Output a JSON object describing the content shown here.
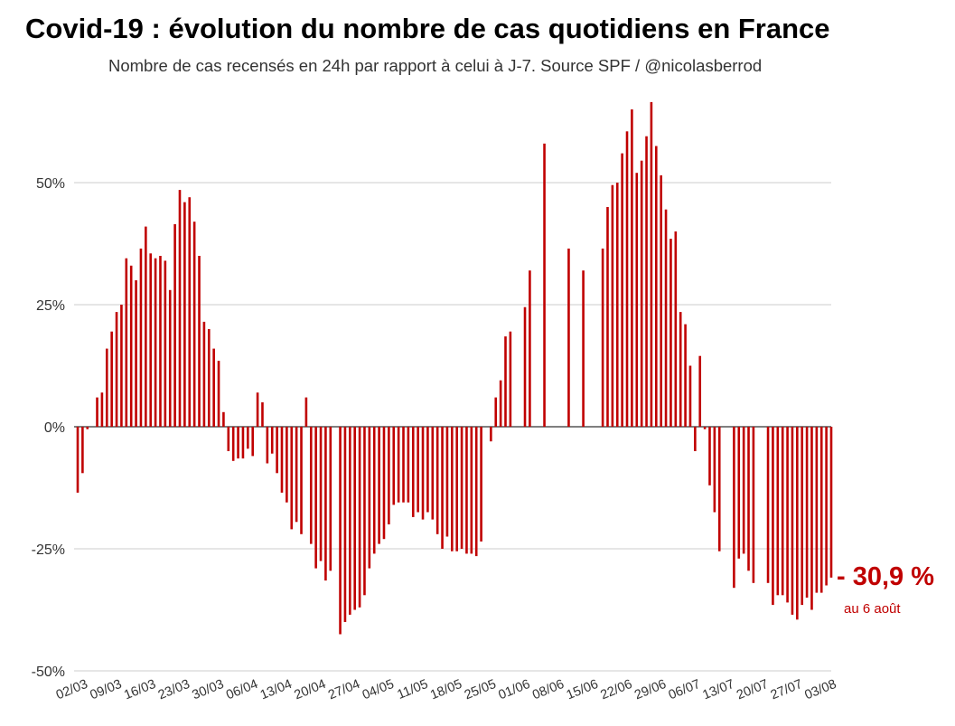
{
  "colors": {
    "bar": "#c00000",
    "annotation": "#c00000"
  },
  "chart_data": {
    "type": "bar",
    "title": "Covid-19 : évolution du nombre de cas quotidiens en France",
    "subtitle": "Nombre de cas recensés en 24h par rapport à celui à J-7. Source SPF / @nicolasberrod",
    "ylabel": "",
    "xlabel": "",
    "ylim": [
      -50,
      67
    ],
    "yticks": [
      50,
      25,
      0,
      -25,
      -50
    ],
    "ytick_labels": [
      "50%",
      "25%",
      "0%",
      "-25%",
      "-50%"
    ],
    "xtick_labels": [
      "02/03",
      "09/03",
      "16/03",
      "23/03",
      "30/03",
      "06/04",
      "13/04",
      "20/04",
      "27/04",
      "04/05",
      "11/05",
      "18/05",
      "25/05",
      "01/06",
      "08/06",
      "15/06",
      "22/06",
      "29/06",
      "06/07",
      "13/07",
      "20/07",
      "27/07",
      "03/08"
    ],
    "start_date": "02/03",
    "end_date": "06/08",
    "values": [
      -13.5,
      -9.5,
      -0.5,
      null,
      6,
      7,
      16,
      19.5,
      23.5,
      25,
      34.5,
      33,
      30,
      36.5,
      41,
      35.5,
      34.5,
      35,
      34,
      28,
      41.5,
      48.5,
      46,
      47,
      42,
      35,
      21.5,
      20,
      16,
      13.5,
      3,
      -5,
      -7,
      -6.5,
      -6.5,
      -4.5,
      -6,
      7,
      5,
      -7.5,
      -5.5,
      -9.5,
      -13.5,
      -15.5,
      -21,
      -19.5,
      -22,
      6,
      -24,
      -29,
      -27.5,
      -31.5,
      -29.5,
      null,
      -42.5,
      -40,
      -38.5,
      -37.5,
      -37,
      -34.5,
      -29,
      -26,
      -24,
      -23,
      -20,
      -16,
      -15.5,
      -15.5,
      -15.5,
      -18.5,
      -17.5,
      -19,
      -17.5,
      -19,
      -22,
      -25,
      -22.5,
      -25.5,
      -25.5,
      -25,
      -26,
      -26,
      -26.5,
      -23.5,
      null,
      -3,
      6,
      9.5,
      18.5,
      19.5,
      null,
      null,
      24.5,
      32,
      null,
      null,
      58,
      null,
      null,
      null,
      null,
      36.5,
      null,
      null,
      32,
      null,
      null,
      null,
      36.5,
      45,
      49.5,
      50,
      56,
      60.5,
      65,
      52,
      54.5,
      59.5,
      66.5,
      57.5,
      51.5,
      44.5,
      38.5,
      40,
      23.5,
      21,
      12.5,
      -5,
      14.5,
      -0.5,
      -12,
      -17.5,
      -25.5,
      null,
      null,
      -33,
      -27,
      -26,
      -29.5,
      -32,
      null,
      null,
      -32,
      -36.5,
      -34.5,
      -34.5,
      -36,
      -38.5,
      -39.5,
      -36.5,
      -35,
      -37.5,
      -34,
      -34,
      -32.5,
      -30.9
    ]
  },
  "annotation": {
    "value": "- 30,9 %",
    "date": "au 6 août"
  }
}
